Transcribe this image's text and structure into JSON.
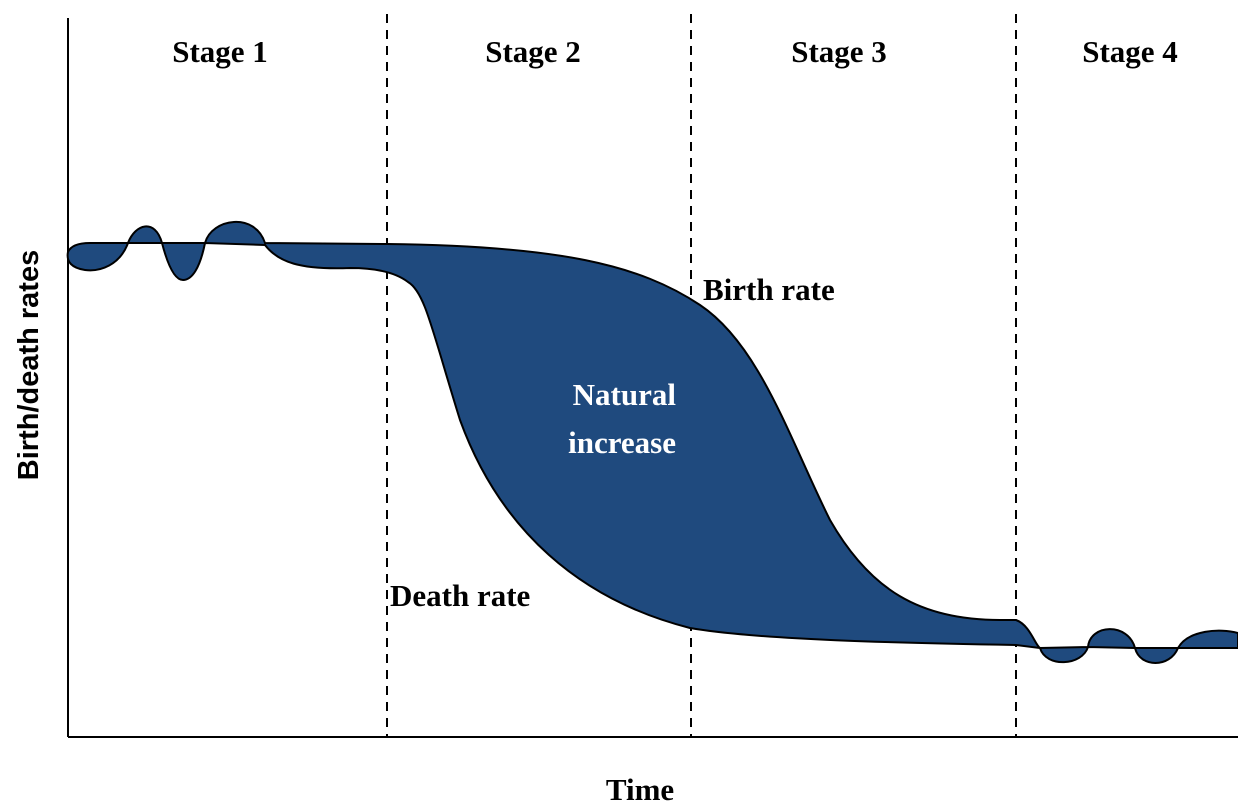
{
  "stages": [
    "Stage 1",
    "Stage 2",
    "Stage 3",
    "Stage 4"
  ],
  "y_axis_label": "Birth/death rates",
  "x_axis_label": "Time",
  "birth_rate_label": "Birth rate",
  "death_rate_label": "Death rate",
  "natural_increase_label": [
    "Natural",
    "increase"
  ]
}
